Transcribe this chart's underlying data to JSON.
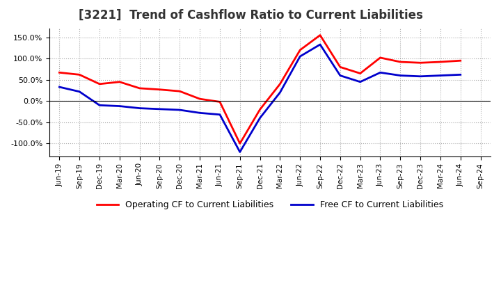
{
  "title": "[3221]  Trend of Cashflow Ratio to Current Liabilities",
  "x_labels": [
    "Jun-19",
    "Sep-19",
    "Dec-19",
    "Mar-20",
    "Jun-20",
    "Sep-20",
    "Dec-20",
    "Mar-21",
    "Jun-21",
    "Sep-21",
    "Dec-21",
    "Mar-22",
    "Jun-22",
    "Sep-22",
    "Dec-22",
    "Mar-23",
    "Jun-23",
    "Sep-23",
    "Dec-23",
    "Mar-24",
    "Jun-24",
    "Sep-24"
  ],
  "operating_cf": [
    67,
    62,
    40,
    45,
    30,
    27,
    23,
    5,
    -2,
    -100,
    -20,
    40,
    120,
    155,
    80,
    65,
    102,
    92,
    90,
    92,
    95,
    null
  ],
  "free_cf": [
    33,
    22,
    -10,
    -12,
    -17,
    -19,
    -21,
    -28,
    -32,
    -120,
    -40,
    20,
    105,
    133,
    60,
    45,
    67,
    60,
    58,
    60,
    62,
    null
  ],
  "operating_color": "#FF0000",
  "free_color": "#0000CC",
  "bg_color": "#FFFFFF",
  "plot_bg_color": "#FFFFFF",
  "grid_color": "#AAAAAA",
  "ylim": [
    -130,
    170
  ],
  "yticks": [
    -100,
    -50,
    0,
    50,
    100,
    150
  ],
  "legend_labels": [
    "Operating CF to Current Liabilities",
    "Free CF to Current Liabilities"
  ]
}
